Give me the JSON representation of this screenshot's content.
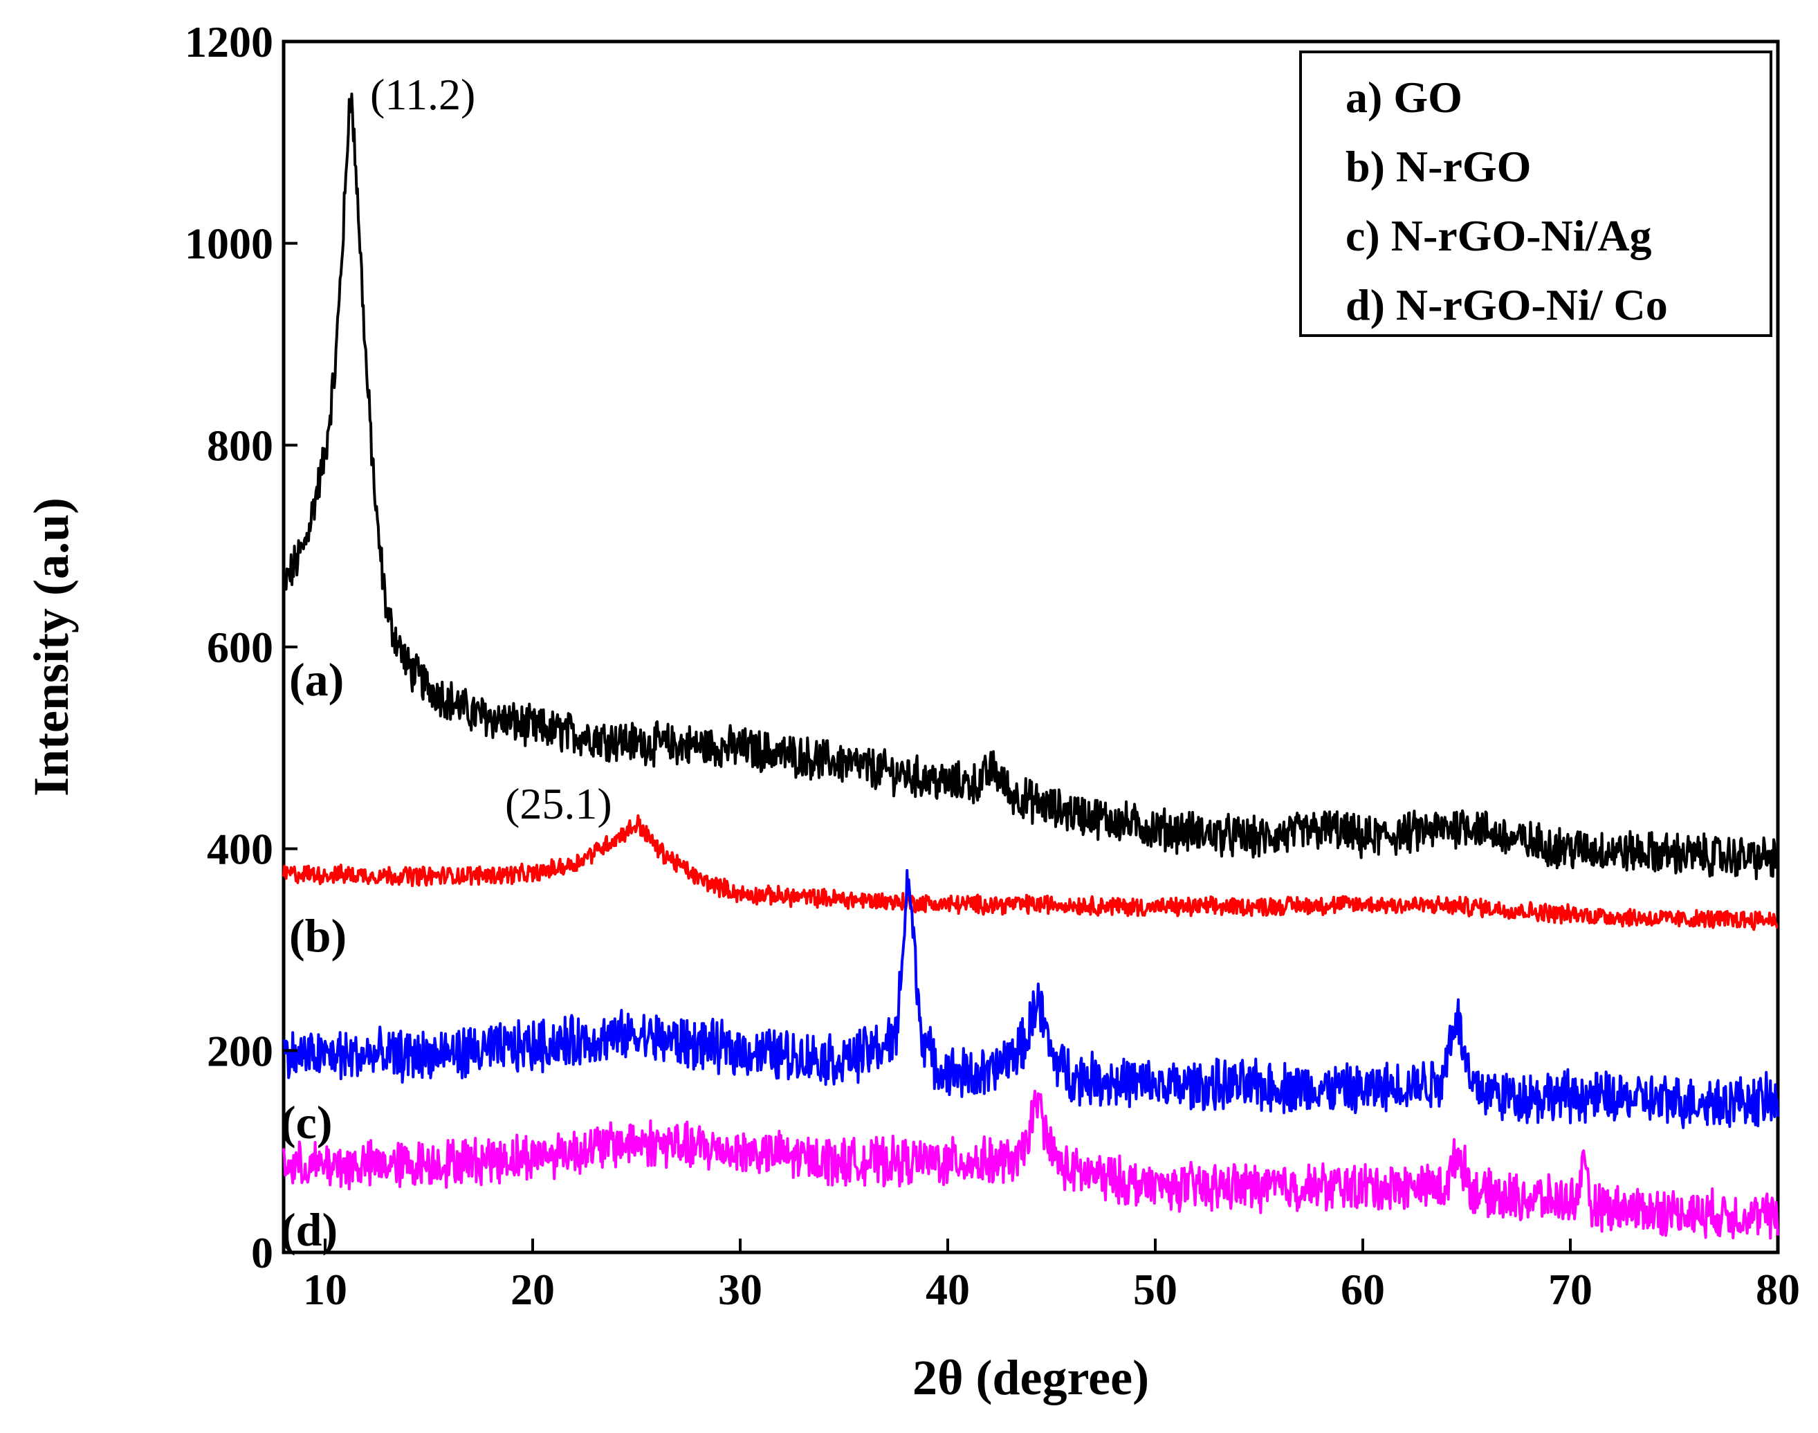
{
  "chart_data": {
    "type": "line",
    "title": "",
    "xlabel": "2θ (degree)",
    "ylabel": "Intensity (a.u)",
    "xlim": [
      8,
      80
    ],
    "ylim": [
      0,
      1200
    ],
    "xticks": [
      10,
      20,
      30,
      40,
      50,
      60,
      70,
      80
    ],
    "yticks": [
      0,
      200,
      400,
      600,
      800,
      1000,
      1200
    ],
    "legend": {
      "position": "top-right",
      "entries": [
        "a) GO",
        "b) N-rGO",
        "c) N-rGO-Ni/Ag",
        "d) N-rGO-Ni/ Co"
      ]
    },
    "annotations": [
      {
        "text": "(11.2)",
        "x": 11.2,
        "y": 1150
      },
      {
        "text": "(25.1)",
        "x": 25.1,
        "y": 425
      }
    ],
    "series": [
      {
        "name": "a) GO",
        "label": "(a)",
        "color": "#000000",
        "noise": 18,
        "x": [
          8,
          9,
          10,
          10.5,
          11,
          11.2,
          11.5,
          12,
          12.5,
          13,
          14,
          15,
          17,
          20,
          25,
          30,
          35,
          40,
          41.5,
          42.2,
          43,
          45,
          50,
          55,
          58.5,
          60,
          62,
          64,
          65,
          67,
          70,
          75,
          80
        ],
        "y": [
          660,
          700,
          790,
          880,
          1060,
          1160,
          1070,
          870,
          720,
          630,
          580,
          560,
          535,
          520,
          505,
          500,
          485,
          465,
          465,
          480,
          455,
          440,
          420,
          410,
          420,
          410,
          415,
          420,
          425,
          410,
          400,
          395,
          390
        ]
      },
      {
        "name": "b) N-rGO",
        "label": "(b)",
        "color": "#ff0000",
        "noise": 8,
        "x": [
          8,
          15,
          20,
          22,
          24,
          25.1,
          26,
          28,
          30,
          35,
          40,
          45,
          50,
          55,
          60,
          65,
          70,
          75,
          80
        ],
        "y": [
          375,
          373,
          375,
          385,
          410,
          425,
          400,
          370,
          355,
          350,
          345,
          345,
          342,
          343,
          345,
          343,
          335,
          330,
          330
        ]
      },
      {
        "name": "c) N-rGO-Ni/Ag",
        "label": "(c)",
        "color": "#0000ff",
        "noise": 22,
        "x": [
          8,
          15,
          20,
          25,
          30,
          35,
          37.5,
          38.1,
          38.7,
          39.5,
          42,
          43.8,
          44.3,
          45,
          46,
          50,
          55,
          60,
          63.8,
          64.5,
          65.2,
          67,
          70,
          75,
          80
        ],
        "y": [
          195,
          195,
          205,
          215,
          200,
          190,
          210,
          375,
          220,
          180,
          175,
          210,
          255,
          195,
          175,
          165,
          165,
          160,
          170,
          240,
          165,
          155,
          155,
          150,
          150
        ]
      },
      {
        "name": "d) N-rGO-Ni/ Co",
        "label": "(d)",
        "color": "#ff00ff",
        "noise": 20,
        "x": [
          8,
          15,
          20,
          25,
          30,
          35,
          40,
          43.5,
          44.3,
          45.2,
          46,
          50,
          55,
          60,
          64,
          64.6,
          65.3,
          67,
          70.2,
          70.6,
          71,
          75,
          80
        ],
        "y": [
          85,
          88,
          95,
          110,
          100,
          90,
          90,
          90,
          150,
          90,
          80,
          65,
          65,
          65,
          65,
          100,
          60,
          55,
          50,
          85,
          45,
          40,
          35
        ]
      }
    ]
  }
}
